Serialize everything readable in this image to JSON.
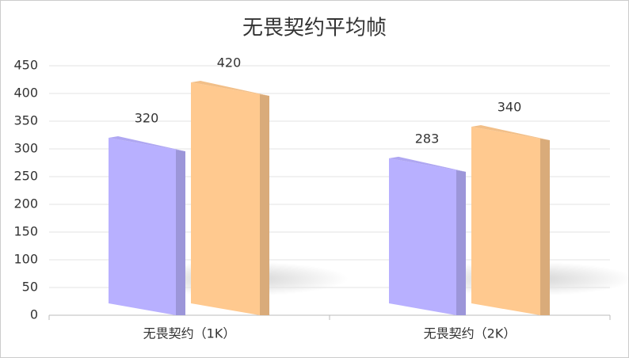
{
  "chart_data": {
    "type": "bar",
    "title": "无畏契约平均帧",
    "categories": [
      "无畏契约（1K）",
      "无畏契约（2K）"
    ],
    "series": [
      {
        "color": "#b8b0ff",
        "values": [
          320,
          283
        ]
      },
      {
        "color": "#ffc98f",
        "values": [
          420,
          340
        ]
      }
    ],
    "ylim": [
      0,
      450
    ],
    "yticks": [
      0,
      50,
      100,
      150,
      200,
      250,
      300,
      350,
      400,
      450
    ],
    "grid": true
  }
}
